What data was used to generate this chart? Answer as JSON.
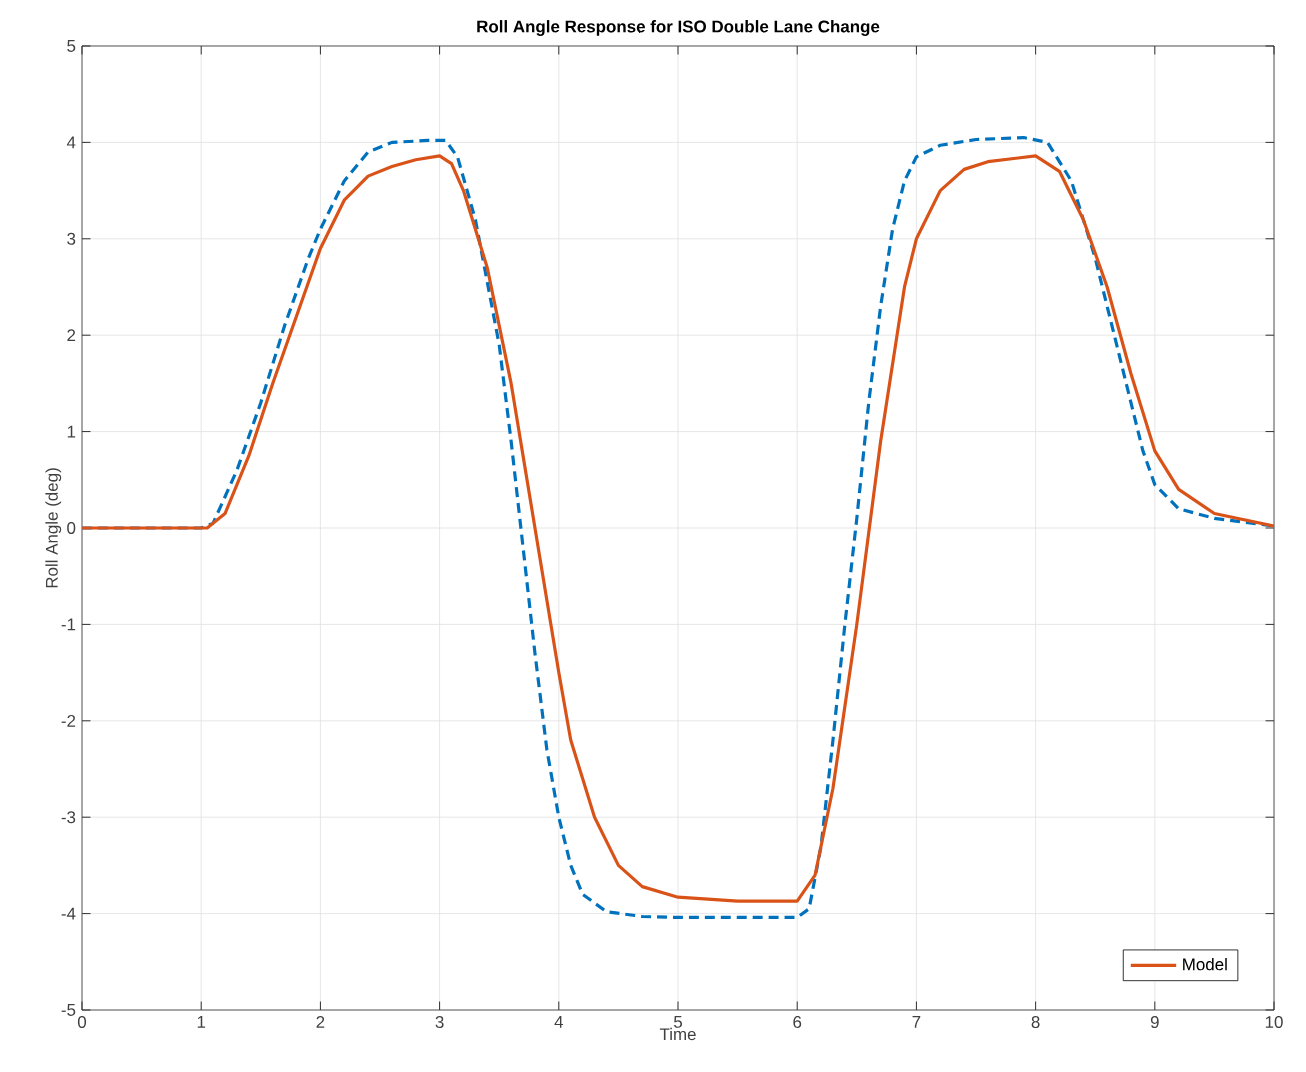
{
  "chart_data": {
    "type": "line",
    "title": "Roll Angle Response for ISO Double Lane Change",
    "xlabel": "Time",
    "ylabel": "Roll Angle (deg)",
    "xlim": [
      0,
      10
    ],
    "ylim": [
      -5,
      5
    ],
    "xticks": [
      0,
      1,
      2,
      3,
      4,
      5,
      6,
      7,
      8,
      9,
      10
    ],
    "yticks": [
      -5,
      -4,
      -3,
      -2,
      -1,
      0,
      1,
      2,
      3,
      4,
      5
    ],
    "grid": true,
    "legend": "bottom right",
    "marker": "none",
    "series": [
      {
        "color": "#0072bd",
        "line_style": "dashed",
        "x": [
          0,
          1,
          1.1,
          1.3,
          1.5,
          1.7,
          1.9,
          2.0,
          2.2,
          2.4,
          2.6,
          2.9,
          3.05,
          3.15,
          3.3,
          3.5,
          3.6,
          3.7,
          3.8,
          3.9,
          4.0,
          4.1,
          4.2,
          4.4,
          4.7,
          5,
          6.0,
          6.1,
          6.2,
          6.3,
          6.4,
          6.5,
          6.6,
          6.7,
          6.8,
          6.9,
          7.0,
          7.2,
          7.5,
          7.9,
          8.1,
          8.3,
          8.5,
          8.7,
          8.9,
          9.0,
          9.2,
          9.5,
          10
        ],
        "values": [
          0,
          0,
          0.05,
          0.6,
          1.3,
          2.1,
          2.8,
          3.1,
          3.6,
          3.9,
          4.0,
          4.02,
          4.02,
          3.85,
          3.2,
          1.9,
          0.9,
          -0.2,
          -1.3,
          -2.3,
          -3.0,
          -3.5,
          -3.8,
          -3.98,
          -4.03,
          -4.04,
          -4.04,
          -3.95,
          -3.3,
          -2.2,
          -1.0,
          0.1,
          1.3,
          2.3,
          3.1,
          3.6,
          3.85,
          3.97,
          4.03,
          4.05,
          4.0,
          3.6,
          2.8,
          1.8,
          0.8,
          0.45,
          0.2,
          0.1,
          0.02
        ]
      },
      {
        "name": "Model",
        "color": "#d95319",
        "line_style": "solid",
        "x": [
          0,
          1.05,
          1.2,
          1.4,
          1.6,
          1.8,
          2.0,
          2.2,
          2.4,
          2.6,
          2.8,
          3.0,
          3.1,
          3.2,
          3.4,
          3.6,
          3.8,
          4.0,
          4.1,
          4.3,
          4.5,
          4.7,
          5.0,
          5.5,
          6.0,
          6.15,
          6.3,
          6.5,
          6.7,
          6.9,
          7.0,
          7.2,
          7.4,
          7.6,
          8.0,
          8.2,
          8.4,
          8.6,
          8.8,
          9.0,
          9.2,
          9.5,
          10
        ],
        "values": [
          0,
          0,
          0.15,
          0.75,
          1.5,
          2.2,
          2.9,
          3.4,
          3.65,
          3.75,
          3.82,
          3.86,
          3.78,
          3.5,
          2.7,
          1.5,
          0.0,
          -1.5,
          -2.2,
          -3.0,
          -3.5,
          -3.72,
          -3.83,
          -3.87,
          -3.87,
          -3.6,
          -2.7,
          -1.0,
          0.9,
          2.5,
          3.0,
          3.5,
          3.72,
          3.8,
          3.86,
          3.7,
          3.2,
          2.5,
          1.6,
          0.8,
          0.4,
          0.15,
          0.02
        ]
      }
    ]
  }
}
